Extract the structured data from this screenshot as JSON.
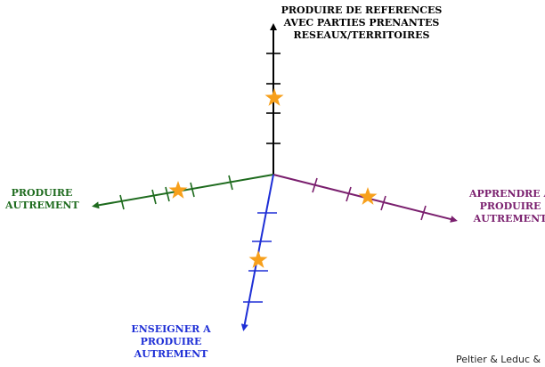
{
  "axes": {
    "top": {
      "lines": [
        "PRODUIRE DE REFERENCES",
        "AVEC PARTIES PRENANTES",
        "RESEAUX/TERRITOIRES"
      ],
      "color": "#000000"
    },
    "left": {
      "lines": [
        "PRODUIRE",
        "AUTREMENT"
      ],
      "color": "#1e6b1e"
    },
    "right": {
      "lines": [
        "APPRENDRE A",
        "PRODUIRE",
        "AUTREMENT"
      ],
      "color": "#7a1f6e"
    },
    "bottom": {
      "lines": [
        "ENSEIGNER A",
        "PRODUIRE",
        "AUTREMENT"
      ],
      "color": "#1e2fd6"
    }
  },
  "marker": {
    "icon": "star-icon",
    "color": "#f7a01c"
  },
  "credit": "Peltier & Leduc & "
}
